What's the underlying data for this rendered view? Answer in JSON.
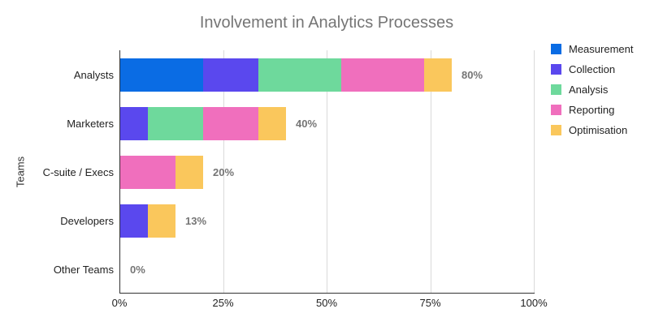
{
  "chart_data": {
    "type": "bar",
    "orientation": "horizontal",
    "stacked": true,
    "title": "Involvement in Analytics Processes",
    "xlabel": "",
    "ylabel": "Teams",
    "categories": [
      "Analysts",
      "Marketers",
      "C-suite / Execs",
      "Developers",
      "Other Teams"
    ],
    "series": [
      {
        "name": "Measurement",
        "color": "#0a6ce4",
        "values": [
          20,
          0,
          0,
          0,
          0
        ]
      },
      {
        "name": "Collection",
        "color": "#5a48ee",
        "values": [
          13.33,
          6.67,
          0,
          6.67,
          0
        ]
      },
      {
        "name": "Analysis",
        "color": "#6ed99c",
        "values": [
          20,
          13.33,
          0,
          0,
          0
        ]
      },
      {
        "name": "Reporting",
        "color": "#f06fbd",
        "values": [
          20,
          13.33,
          13.33,
          0,
          0
        ]
      },
      {
        "name": "Optimisation",
        "color": "#fac75c",
        "values": [
          6.67,
          6.67,
          6.67,
          6.67,
          0
        ]
      }
    ],
    "totals": [
      80,
      40,
      20,
      13.33,
      0
    ],
    "total_labels": [
      "80%",
      "40%",
      "20%",
      "13%",
      "0%"
    ],
    "x_ticks": [
      "0%",
      "25%",
      "50%",
      "75%",
      "100%"
    ],
    "x_tick_values": [
      0,
      25,
      50,
      75,
      100
    ],
    "xlim": [
      0,
      100
    ],
    "grid": true,
    "legend_position": "right"
  },
  "style": {
    "gridline_color": "#dadada",
    "axis_color": "#333333",
    "title_color": "#757575",
    "value_label_color": "#757575",
    "background": "#ffffff"
  }
}
